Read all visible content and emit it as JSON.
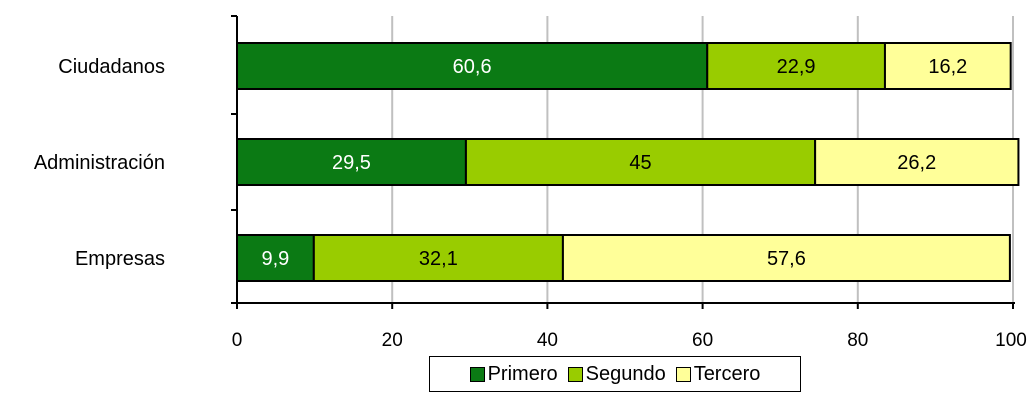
{
  "chart_data": {
    "type": "bar",
    "orientation": "horizontal",
    "stacked": true,
    "categories": [
      "Ciudadanos",
      "Administración",
      "Empresas"
    ],
    "series": [
      {
        "name": "Primero",
        "values": [
          60.6,
          29.5,
          9.9
        ],
        "labels": [
          "60,6",
          "29,5",
          "9,9"
        ],
        "color": "#0b7a14",
        "label_color": "#ffffff"
      },
      {
        "name": "Segundo",
        "values": [
          22.9,
          45,
          32.1
        ],
        "labels": [
          "22,9",
          "45",
          "32,1"
        ],
        "color": "#99cc00",
        "label_color": "#000000"
      },
      {
        "name": "Tercero",
        "values": [
          16.2,
          26.2,
          57.6
        ],
        "labels": [
          "16,2",
          "26,2",
          "57,6"
        ],
        "color": "#ffff99",
        "label_color": "#000000"
      }
    ],
    "xlim": [
      0,
      100
    ],
    "xticks": [
      0,
      20,
      40,
      60,
      80,
      100
    ],
    "grid": "vertical",
    "legend_position": "bottom",
    "title": "",
    "xlabel": "",
    "ylabel": ""
  }
}
